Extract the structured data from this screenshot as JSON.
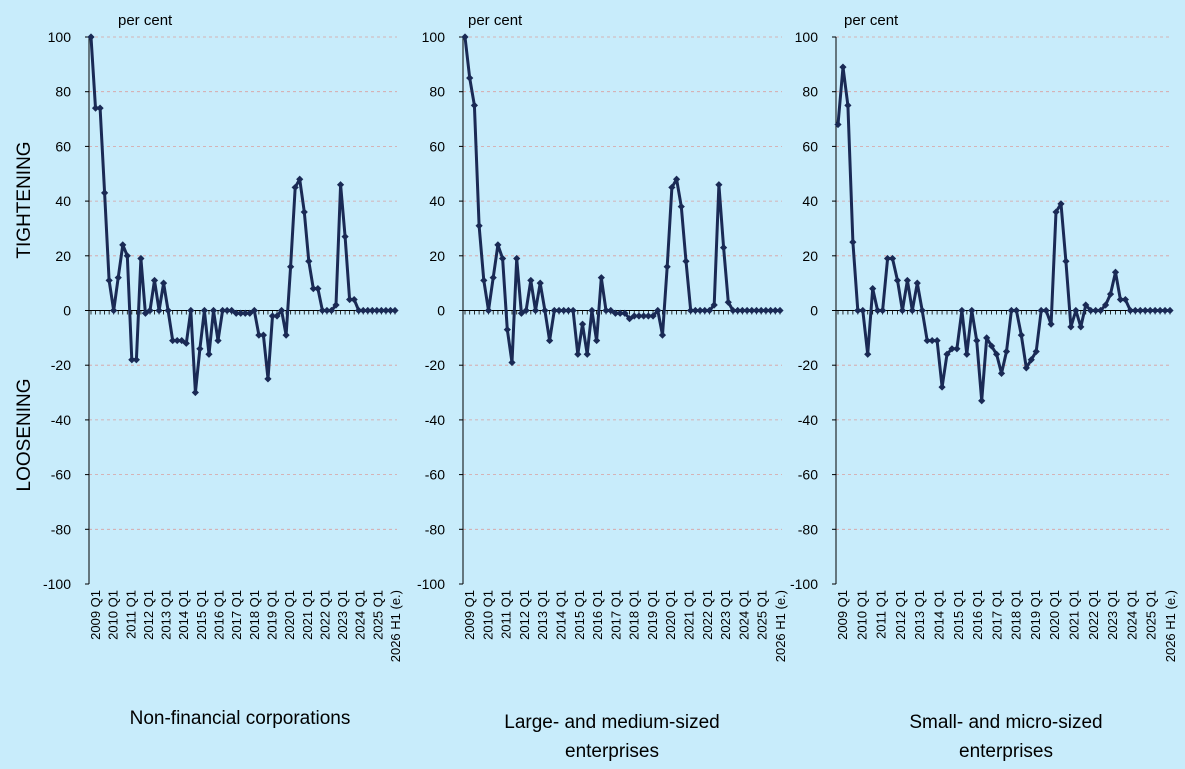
{
  "side_labels": {
    "tightening": "TIGHTENING",
    "loosening": "LOOSENING"
  },
  "colors": {
    "background": "#c8ecfb",
    "line": "#1a2a55",
    "grid": "#d9a0a0",
    "axis": "#000000"
  },
  "chart_data": [
    {
      "type": "line",
      "title": "Non-financial corporations",
      "ylabel": "per cent",
      "ylim": [
        -100,
        100
      ],
      "yticks": [
        100,
        80,
        60,
        40,
        20,
        0,
        -20,
        -40,
        -60,
        -80,
        -100
      ],
      "grid": true,
      "xticks": [
        "2009 Q1",
        "2010 Q1",
        "2011 Q1",
        "2012 Q1",
        "2013 Q1",
        "2014 Q1",
        "2015 Q1",
        "2016 Q1",
        "2017 Q1",
        "2018 Q1",
        "2019 Q1",
        "2020 Q1",
        "2021 Q1",
        "2022 Q1",
        "2023 Q1",
        "2024 Q1",
        "2025 Q1",
        "2026 H1 (e.)"
      ],
      "series": [
        {
          "values": [
            100,
            74,
            74,
            43,
            11,
            0,
            12,
            24,
            20,
            -18,
            -18,
            19,
            -1,
            0,
            11,
            0,
            10,
            0,
            -11,
            -11,
            -11,
            -12,
            0,
            -30,
            -14,
            0,
            -16,
            0,
            -11,
            0,
            0,
            0,
            -1,
            -1,
            -1,
            -1,
            0,
            -9,
            -9,
            -25,
            -2,
            -2,
            0,
            -9,
            16,
            45,
            48,
            36,
            18,
            8,
            8,
            0,
            0,
            0,
            2,
            46,
            27,
            4,
            4,
            0,
            0,
            0,
            0,
            0,
            0,
            0,
            0,
            0
          ]
        }
      ]
    },
    {
      "type": "line",
      "title": "Large- and medium-sized enterprises",
      "ylabel": "per cent",
      "ylim": [
        -100,
        100
      ],
      "yticks": [
        100,
        80,
        60,
        40,
        20,
        0,
        -20,
        -40,
        -60,
        -80,
        -100
      ],
      "grid": true,
      "xticks": [
        "2009 Q1",
        "2010 Q1",
        "2011 Q1",
        "2012 Q1",
        "2013 Q1",
        "2014 Q1",
        "2015 Q1",
        "2016 Q1",
        "2017 Q1",
        "2018 Q1",
        "2019 Q1",
        "2020 Q1",
        "2021 Q1",
        "2022 Q1",
        "2023 Q1",
        "2024 Q1",
        "2025 Q1",
        "2026 H1 (e.)"
      ],
      "series": [
        {
          "values": [
            100,
            85,
            75,
            31,
            11,
            0,
            12,
            24,
            19,
            -7,
            -19,
            19,
            -1,
            0,
            11,
            0,
            10,
            0,
            -11,
            0,
            0,
            0,
            0,
            0,
            -16,
            -5,
            -16,
            0,
            -11,
            12,
            0,
            0,
            -1,
            -1,
            -1,
            -3,
            -2,
            -2,
            -2,
            -2,
            -2,
            0,
            -9,
            16,
            45,
            48,
            38,
            18,
            0,
            0,
            0,
            0,
            0,
            2,
            46,
            23,
            3,
            0,
            0,
            0,
            0,
            0,
            0,
            0,
            0,
            0,
            0,
            0
          ]
        }
      ]
    },
    {
      "type": "line",
      "title": "Small- and micro-sized enterprises",
      "ylabel": "per cent",
      "ylim": [
        -100,
        100
      ],
      "yticks": [
        100,
        80,
        60,
        40,
        20,
        0,
        -20,
        -40,
        -60,
        -80,
        -100
      ],
      "grid": true,
      "xticks": [
        "2009 Q1",
        "2010 Q1",
        "2011 Q1",
        "2012 Q1",
        "2013 Q1",
        "2014 Q1",
        "2015 Q1",
        "2016 Q1",
        "2017 Q1",
        "2018 Q1",
        "2019 Q1",
        "2020 Q1",
        "2021 Q1",
        "2022 Q1",
        "2023 Q1",
        "2024 Q1",
        "2025 Q1",
        "2026 H1 (e.)"
      ],
      "series": [
        {
          "values": [
            68,
            89,
            75,
            25,
            0,
            0,
            -16,
            8,
            0,
            0,
            19,
            19,
            11,
            0,
            11,
            0,
            10,
            0,
            -11,
            -11,
            -11,
            -28,
            -16,
            -14,
            -14,
            0,
            -16,
            0,
            -11,
            -33,
            -10,
            -13,
            -16,
            -23,
            -15,
            0,
            0,
            -9,
            -21,
            -18,
            -15,
            0,
            0,
            -5,
            36,
            39,
            18,
            -6,
            0,
            -6,
            2,
            0,
            0,
            0,
            2,
            6,
            14,
            4,
            4,
            0,
            0,
            0,
            0,
            0,
            0,
            0,
            0,
            0
          ]
        }
      ]
    }
  ]
}
